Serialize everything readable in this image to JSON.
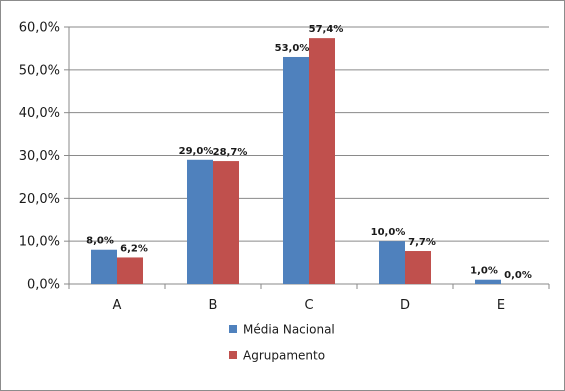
{
  "chart_data": {
    "type": "bar",
    "categories": [
      "A",
      "B",
      "C",
      "D",
      "E"
    ],
    "ylim": [
      0,
      60
    ],
    "ytick_step": 10,
    "ytick_labels": [
      "0,0%",
      "10,0%",
      "20,0%",
      "30,0%",
      "40,0%",
      "50,0%",
      "60,0%"
    ],
    "grid": true,
    "legend_position": "bottom",
    "series": [
      {
        "name": "Média Nacional",
        "color": "#4f81bd",
        "values": [
          8.0,
          29.0,
          53.0,
          10.0,
          1.0
        ],
        "labels": [
          "8,0%",
          "29,0%",
          "53,0%",
          "10,0%",
          "1,0%"
        ]
      },
      {
        "name": "Agrupamento",
        "color": "#c0504d",
        "values": [
          6.2,
          28.7,
          57.4,
          7.7,
          0.0
        ],
        "labels": [
          "6,2%",
          "28,7%",
          "57,4%",
          "7,7%",
          "0,0%"
        ]
      }
    ]
  }
}
